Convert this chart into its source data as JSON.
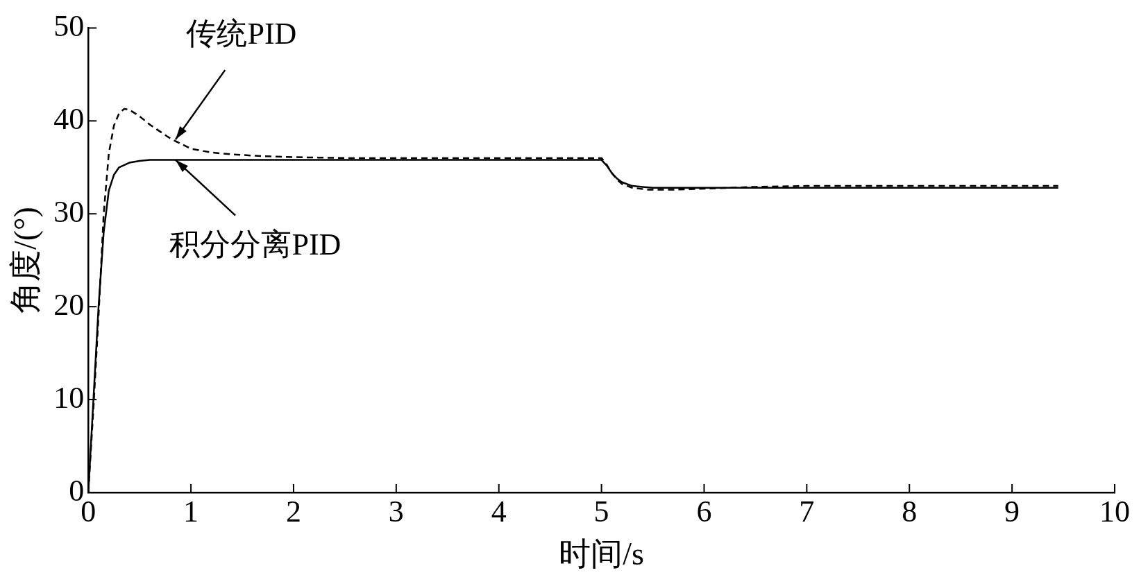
{
  "chart_data": {
    "type": "line",
    "xlabel": "时间/s",
    "ylabel": "角度/(°)",
    "xlim": [
      0,
      10
    ],
    "xticks": [
      0,
      1,
      2,
      3,
      4,
      5,
      6,
      7,
      8,
      9,
      10
    ],
    "ylim": [
      0,
      50
    ],
    "yticks": [
      0,
      10,
      20,
      30,
      40,
      50
    ],
    "grid": false,
    "legend": false,
    "marker": "none",
    "series": [
      {
        "color": "#000000",
        "line_style": "dashed",
        "x": [
          0,
          0.05,
          0.1,
          0.15,
          0.2,
          0.25,
          0.3,
          0.35,
          0.4,
          0.5,
          0.6,
          0.8,
          1,
          1.2,
          1.4,
          1.7,
          2,
          2.5,
          3,
          4,
          4.95,
          5,
          5.05,
          5.1,
          5.15,
          5.2,
          5.3,
          5.45,
          5.7,
          6,
          6.5,
          7,
          8,
          9,
          9.45
        ],
        "values": [
          0,
          9,
          19,
          30,
          36.5,
          39.5,
          40.8,
          41.3,
          41.2,
          40.5,
          39.6,
          38.1,
          37.0,
          36.6,
          36.4,
          36.2,
          36.1,
          36.0,
          36.0,
          36.0,
          36.0,
          36.0,
          35.3,
          34.4,
          33.7,
          33.2,
          32.8,
          32.6,
          32.6,
          32.7,
          32.9,
          33.0,
          33.0,
          33.0,
          33.0
        ]
      },
      {
        "color": "#000000",
        "line_style": "solid",
        "x": [
          0,
          0.05,
          0.1,
          0.15,
          0.2,
          0.25,
          0.3,
          0.4,
          0.5,
          0.6,
          0.8,
          1,
          2,
          3,
          4,
          4.95,
          5,
          5.05,
          5.1,
          5.15,
          5.2,
          5.3,
          5.4,
          5.5,
          5.7,
          6,
          7,
          8,
          9,
          9.45
        ],
        "values": [
          0,
          10,
          20,
          28,
          32.5,
          34.2,
          35.0,
          35.5,
          35.7,
          35.8,
          35.8,
          35.8,
          35.8,
          35.8,
          35.8,
          35.8,
          35.8,
          35.2,
          34.4,
          33.8,
          33.4,
          33.0,
          32.9,
          32.8,
          32.8,
          32.8,
          32.8,
          32.8,
          32.8,
          32.8
        ]
      }
    ],
    "annotations": [
      {
        "text": "传统PID",
        "x": 0.85,
        "y": 38
      },
      {
        "text": "积分分离PID",
        "x": 0.85,
        "y": 35.8
      }
    ]
  }
}
